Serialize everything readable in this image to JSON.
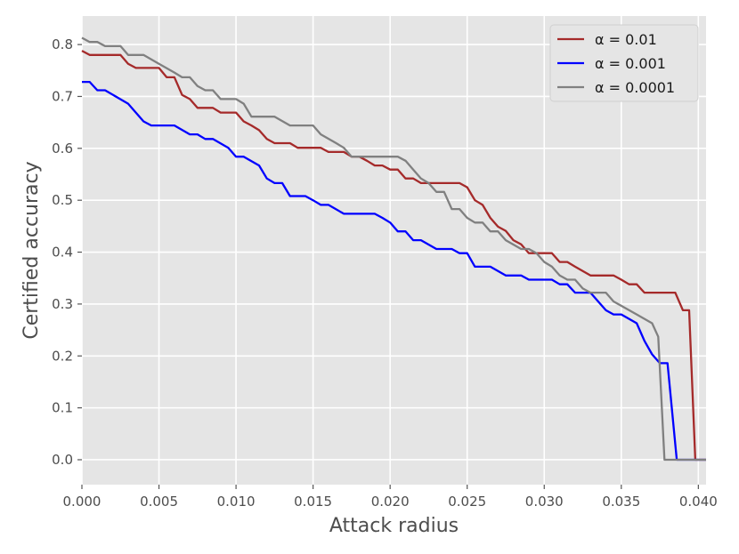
{
  "chart_data": {
    "type": "line",
    "title": "",
    "xlabel": "Attack radius",
    "ylabel": "Certified accuracy",
    "xlim": [
      0,
      0.0405
    ],
    "ylim": [
      -0.048,
      0.855
    ],
    "grid": true,
    "background": "#e5e5e5",
    "legend_position": "top-right",
    "x_ticks": [
      0.0,
      0.005,
      0.01,
      0.015,
      0.02,
      0.025,
      0.03,
      0.035,
      0.04
    ],
    "x_tick_labels": [
      "0.000",
      "0.005",
      "0.010",
      "0.015",
      "0.020",
      "0.025",
      "0.030",
      "0.035",
      "0.040"
    ],
    "y_ticks": [
      0.0,
      0.1,
      0.2,
      0.3,
      0.4,
      0.5,
      0.6,
      0.7,
      0.8
    ],
    "y_tick_labels": [
      "0.0",
      "0.1",
      "0.2",
      "0.3",
      "0.4",
      "0.5",
      "0.6",
      "0.7",
      "0.8"
    ],
    "series": [
      {
        "name": "α = 0.01",
        "color": "#a52a2a",
        "points": [
          [
            0,
            0.788
          ],
          [
            0.0005,
            0.78
          ],
          [
            0.0025,
            0.78
          ],
          [
            0.003,
            0.763
          ],
          [
            0.0035,
            0.755
          ],
          [
            0.005,
            0.755
          ],
          [
            0.0055,
            0.737
          ],
          [
            0.006,
            0.737
          ],
          [
            0.0065,
            0.703
          ],
          [
            0.007,
            0.695
          ],
          [
            0.0075,
            0.678
          ],
          [
            0.0085,
            0.678
          ],
          [
            0.009,
            0.669
          ],
          [
            0.01,
            0.669
          ],
          [
            0.0105,
            0.652
          ],
          [
            0.011,
            0.644
          ],
          [
            0.0115,
            0.635
          ],
          [
            0.012,
            0.618
          ],
          [
            0.0125,
            0.61
          ],
          [
            0.0135,
            0.61
          ],
          [
            0.014,
            0.601
          ],
          [
            0.0155,
            0.601
          ],
          [
            0.016,
            0.593
          ],
          [
            0.017,
            0.593
          ],
          [
            0.0175,
            0.584
          ],
          [
            0.018,
            0.584
          ],
          [
            0.0185,
            0.576
          ],
          [
            0.019,
            0.567
          ],
          [
            0.0195,
            0.567
          ],
          [
            0.02,
            0.559
          ],
          [
            0.0205,
            0.559
          ],
          [
            0.021,
            0.542
          ],
          [
            0.0215,
            0.542
          ],
          [
            0.022,
            0.533
          ],
          [
            0.0245,
            0.533
          ],
          [
            0.025,
            0.525
          ],
          [
            0.0255,
            0.5
          ],
          [
            0.026,
            0.491
          ],
          [
            0.0265,
            0.466
          ],
          [
            0.027,
            0.449
          ],
          [
            0.0275,
            0.441
          ],
          [
            0.028,
            0.423
          ],
          [
            0.0285,
            0.415
          ],
          [
            0.029,
            0.398
          ],
          [
            0.0305,
            0.398
          ],
          [
            0.031,
            0.381
          ],
          [
            0.0315,
            0.381
          ],
          [
            0.032,
            0.372
          ],
          [
            0.033,
            0.355
          ],
          [
            0.0345,
            0.355
          ],
          [
            0.035,
            0.347
          ],
          [
            0.0355,
            0.338
          ],
          [
            0.036,
            0.338
          ],
          [
            0.0365,
            0.322
          ],
          [
            0.0375,
            0.322
          ],
          [
            0.0385,
            0.322
          ],
          [
            0.039,
            0.288
          ],
          [
            0.0394,
            0.288
          ],
          [
            0.0398,
            0.0
          ],
          [
            0.0405,
            0.0
          ]
        ]
      },
      {
        "name": "α = 0.001",
        "color": "#0000ff",
        "points": [
          [
            0,
            0.728
          ],
          [
            0.0005,
            0.728
          ],
          [
            0.001,
            0.712
          ],
          [
            0.0015,
            0.712
          ],
          [
            0.003,
            0.686
          ],
          [
            0.0035,
            0.669
          ],
          [
            0.004,
            0.652
          ],
          [
            0.0045,
            0.644
          ],
          [
            0.006,
            0.644
          ],
          [
            0.007,
            0.627
          ],
          [
            0.0075,
            0.627
          ],
          [
            0.008,
            0.618
          ],
          [
            0.0085,
            0.618
          ],
          [
            0.0095,
            0.601
          ],
          [
            0.01,
            0.584
          ],
          [
            0.0105,
            0.584
          ],
          [
            0.0115,
            0.567
          ],
          [
            0.012,
            0.542
          ],
          [
            0.0125,
            0.533
          ],
          [
            0.013,
            0.533
          ],
          [
            0.0135,
            0.508
          ],
          [
            0.0145,
            0.508
          ],
          [
            0.015,
            0.5
          ],
          [
            0.0155,
            0.491
          ],
          [
            0.016,
            0.491
          ],
          [
            0.017,
            0.474
          ],
          [
            0.019,
            0.474
          ],
          [
            0.0195,
            0.466
          ],
          [
            0.02,
            0.457
          ],
          [
            0.0205,
            0.44
          ],
          [
            0.021,
            0.44
          ],
          [
            0.0215,
            0.423
          ],
          [
            0.022,
            0.423
          ],
          [
            0.023,
            0.406
          ],
          [
            0.024,
            0.406
          ],
          [
            0.0245,
            0.398
          ],
          [
            0.025,
            0.398
          ],
          [
            0.0255,
            0.372
          ],
          [
            0.0265,
            0.372
          ],
          [
            0.0275,
            0.355
          ],
          [
            0.0285,
            0.355
          ],
          [
            0.029,
            0.347
          ],
          [
            0.0305,
            0.347
          ],
          [
            0.031,
            0.338
          ],
          [
            0.0315,
            0.338
          ],
          [
            0.032,
            0.322
          ],
          [
            0.033,
            0.322
          ],
          [
            0.0335,
            0.305
          ],
          [
            0.034,
            0.288
          ],
          [
            0.0345,
            0.28
          ],
          [
            0.035,
            0.28
          ],
          [
            0.036,
            0.263
          ],
          [
            0.0365,
            0.229
          ],
          [
            0.037,
            0.203
          ],
          [
            0.0375,
            0.186
          ],
          [
            0.038,
            0.186
          ],
          [
            0.0386,
            0.0
          ],
          [
            0.0405,
            0.0
          ]
        ]
      },
      {
        "name": "α = 0.0001",
        "color": "#808080",
        "points": [
          [
            0,
            0.813
          ],
          [
            0.0005,
            0.805
          ],
          [
            0.001,
            0.805
          ],
          [
            0.0015,
            0.797
          ],
          [
            0.0025,
            0.797
          ],
          [
            0.003,
            0.78
          ],
          [
            0.004,
            0.78
          ],
          [
            0.005,
            0.763
          ],
          [
            0.006,
            0.746
          ],
          [
            0.0065,
            0.737
          ],
          [
            0.007,
            0.737
          ],
          [
            0.0075,
            0.72
          ],
          [
            0.008,
            0.712
          ],
          [
            0.0085,
            0.712
          ],
          [
            0.009,
            0.695
          ],
          [
            0.01,
            0.695
          ],
          [
            0.0105,
            0.686
          ],
          [
            0.011,
            0.661
          ],
          [
            0.0125,
            0.661
          ],
          [
            0.0135,
            0.644
          ],
          [
            0.015,
            0.644
          ],
          [
            0.0155,
            0.627
          ],
          [
            0.0165,
            0.61
          ],
          [
            0.017,
            0.601
          ],
          [
            0.0175,
            0.584
          ],
          [
            0.0205,
            0.584
          ],
          [
            0.021,
            0.576
          ],
          [
            0.0215,
            0.559
          ],
          [
            0.022,
            0.542
          ],
          [
            0.0225,
            0.533
          ],
          [
            0.023,
            0.516
          ],
          [
            0.0235,
            0.516
          ],
          [
            0.024,
            0.483
          ],
          [
            0.0245,
            0.483
          ],
          [
            0.025,
            0.466
          ],
          [
            0.0255,
            0.457
          ],
          [
            0.026,
            0.457
          ],
          [
            0.0265,
            0.44
          ],
          [
            0.027,
            0.44
          ],
          [
            0.0275,
            0.423
          ],
          [
            0.0285,
            0.406
          ],
          [
            0.029,
            0.406
          ],
          [
            0.0295,
            0.398
          ],
          [
            0.03,
            0.381
          ],
          [
            0.0305,
            0.372
          ],
          [
            0.031,
            0.355
          ],
          [
            0.0315,
            0.347
          ],
          [
            0.032,
            0.347
          ],
          [
            0.0325,
            0.33
          ],
          [
            0.033,
            0.322
          ],
          [
            0.034,
            0.322
          ],
          [
            0.0345,
            0.305
          ],
          [
            0.036,
            0.28
          ],
          [
            0.037,
            0.263
          ],
          [
            0.0374,
            0.237
          ],
          [
            0.0378,
            0.0
          ],
          [
            0.0405,
            0.0
          ]
        ]
      }
    ]
  }
}
